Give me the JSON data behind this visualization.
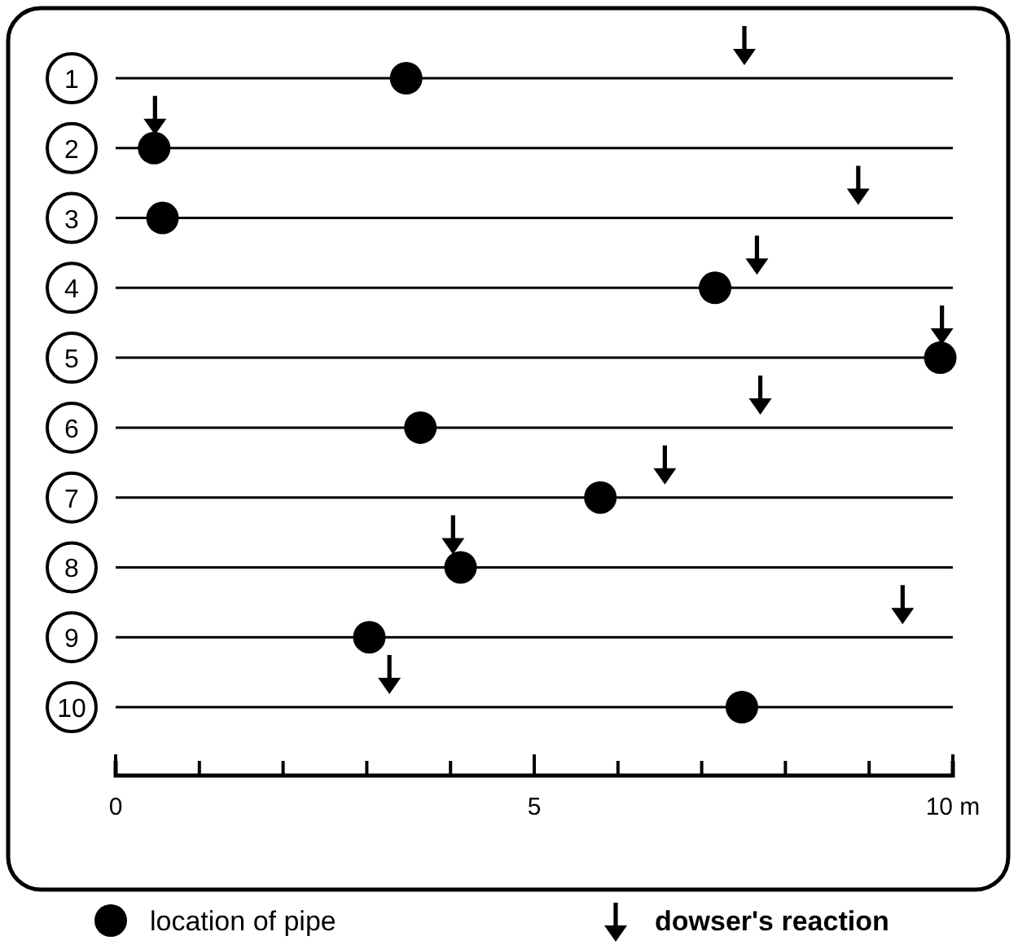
{
  "chart_data": {
    "type": "scatter",
    "orientation": "horizontal",
    "categories": [
      "1",
      "2",
      "3",
      "4",
      "5",
      "6",
      "7",
      "8",
      "9",
      "10"
    ],
    "series": [
      {
        "name": "location of pipe",
        "color": "#000000",
        "marker": "circle",
        "values": [
          3.47,
          0.46,
          0.56,
          7.16,
          9.85,
          3.64,
          5.79,
          4.12,
          3.03,
          7.48
        ]
      },
      {
        "name": "dowser's reaction",
        "color": "#000000",
        "marker": "triangle",
        "values": [
          7.51,
          0.47,
          8.87,
          7.66,
          9.87,
          7.7,
          6.56,
          4.03,
          9.4,
          3.27
        ]
      }
    ],
    "xlim": [
      0,
      10
    ],
    "xticks": [
      0,
      {
        "value": 1,
        "label": null
      },
      {
        "value": 2,
        "label": null
      },
      {
        "value": 3,
        "label": null
      },
      {
        "value": 4,
        "label": null
      },
      5,
      {
        "value": 6,
        "label": null
      },
      {
        "value": 7,
        "label": null
      },
      {
        "value": 8,
        "label": null
      },
      {
        "value": 9,
        "label": null
      },
      {
        "value": 10,
        "label": "10 m"
      }
    ],
    "grid": "y",
    "legend": "bottom"
  }
}
